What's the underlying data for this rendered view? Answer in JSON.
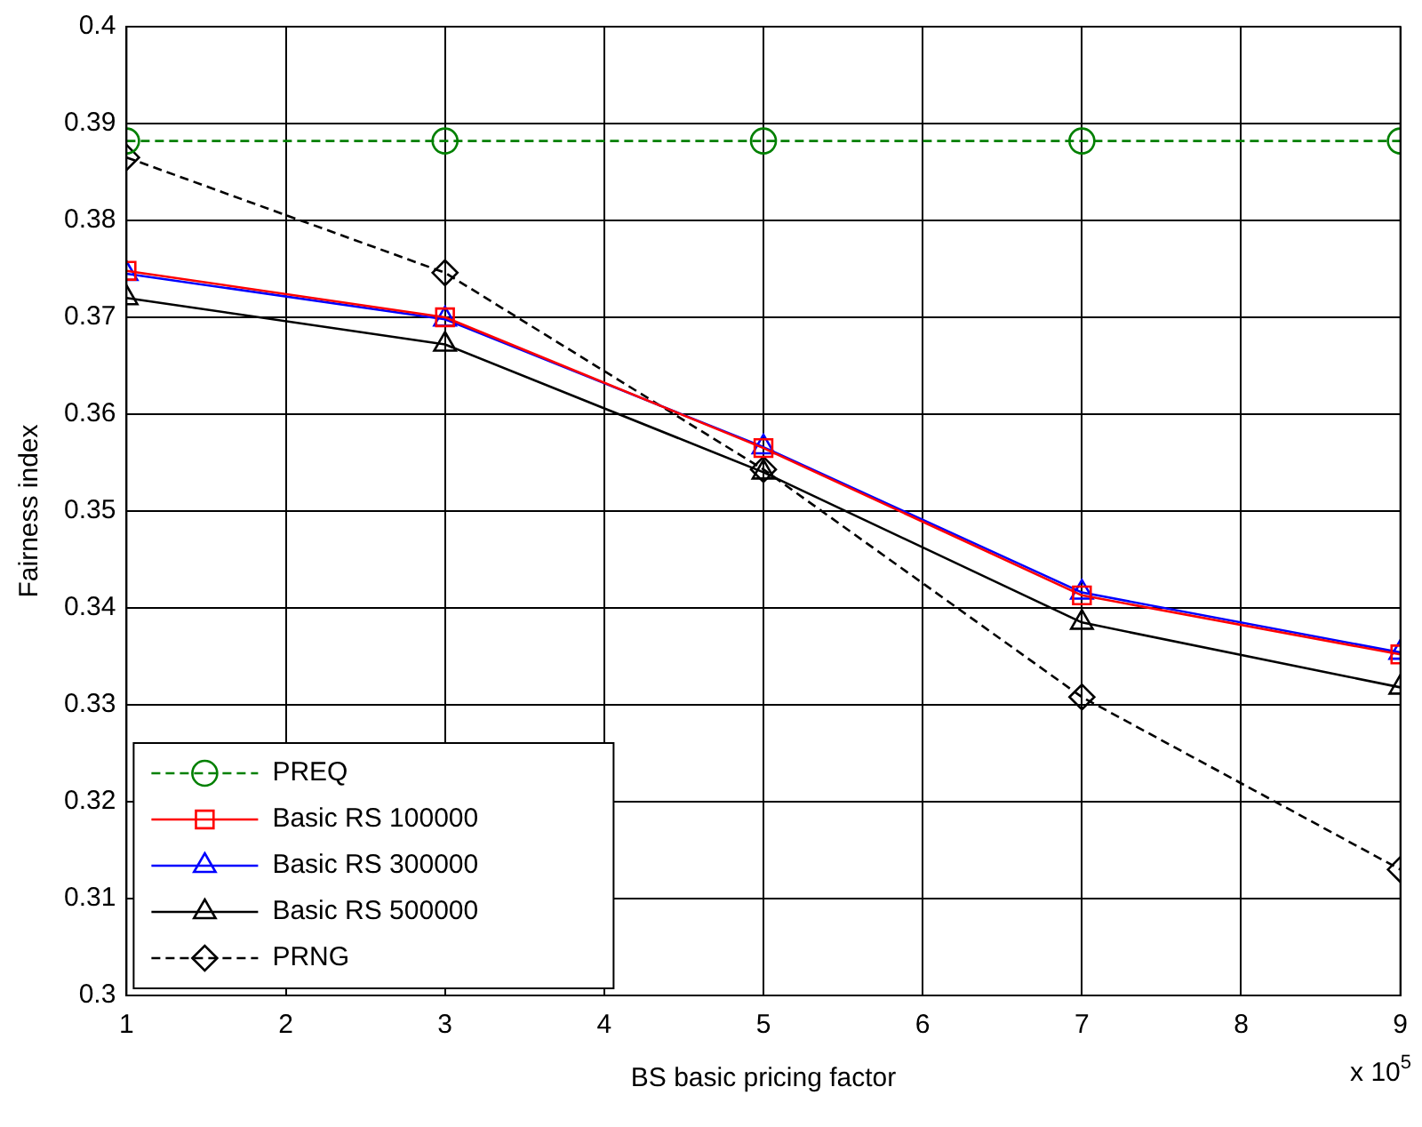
{
  "chart_data": {
    "type": "line",
    "xlabel": "BS basic pricing factor",
    "ylabel": "Fairness index",
    "x": [
      1,
      3,
      5,
      7,
      9
    ],
    "xlim": [
      1,
      9
    ],
    "xticks": [
      1,
      2,
      3,
      4,
      5,
      6,
      7,
      8,
      9
    ],
    "ylim": [
      0.3,
      0.4
    ],
    "yticks": [
      0.3,
      0.31,
      0.32,
      0.33,
      0.34,
      0.35,
      0.36,
      0.37,
      0.38,
      0.39,
      0.4
    ],
    "grid": true,
    "legend": "bottom left",
    "annotations": [
      "x 10$^{5}$"
    ],
    "series": [
      {
        "name": "PREQ",
        "color": "#008000",
        "marker": "circle",
        "line_style": "dashed",
        "values": [
          0.3882,
          0.3882,
          0.3882,
          0.3882,
          0.3882
        ]
      },
      {
        "name": "Basic RS 100000",
        "color": "#ff0000",
        "marker": "square",
        "line_style": "solid",
        "values": [
          0.3748,
          0.37,
          0.3565,
          0.3413,
          0.3352
        ]
      },
      {
        "name": "Basic RS 300000",
        "color": "#0000ff",
        "marker": "triangle",
        "line_style": "solid",
        "values": [
          0.3745,
          0.3698,
          0.3566,
          0.3416,
          0.3354
        ]
      },
      {
        "name": "Basic RS 500000",
        "color": "#000000",
        "marker": "triangle",
        "line_style": "solid",
        "values": [
          0.372,
          0.3672,
          0.354,
          0.3385,
          0.3318
        ]
      },
      {
        "name": "PRNG",
        "color": "#000000",
        "marker": "diamond",
        "line_style": "dashed",
        "values": [
          0.3865,
          0.3746,
          0.3543,
          0.3308,
          0.313
        ]
      }
    ]
  }
}
